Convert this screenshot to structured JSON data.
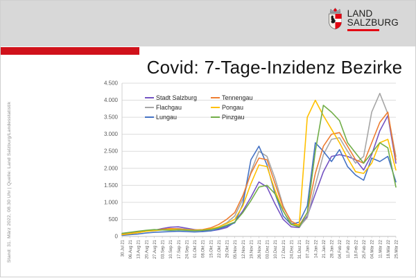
{
  "header": {
    "logo": {
      "line1": "LAND",
      "line2": "SALZBURG"
    }
  },
  "sidebar": {
    "note": "Stand: 31. März 2022, 08.30 Uhr | Quelle: Land Salzburg/Landesstatistik"
  },
  "title": "Covid: 7-Tage-Inzidenz Bezirke",
  "colors": {
    "header_gray": "#d8d8d8",
    "accent_red": "#d0121b",
    "logo_red": "#e30613",
    "grid": "#dcdcdc",
    "axis_text": "#595959"
  },
  "chart_data": {
    "type": "line",
    "title": "Covid: 7-Tage-Inzidenz Bezirke",
    "ylabel": "",
    "xlabel": "",
    "ylim": [
      0,
      4500
    ],
    "y_ticks": [
      "4.500",
      "4.000",
      "3.500",
      "3.000",
      "2.500",
      "2.000",
      "1.500",
      "1.000",
      "500",
      "0"
    ],
    "grid": "horizontal",
    "legend_position": "top-inside-two-columns",
    "categories": [
      "30.Jul 21",
      "06.Aug 21",
      "13.Aug 21",
      "20.Aug 21",
      "27.Aug 21",
      "03.Sep 21",
      "10.Sep 21",
      "17.Sep 21",
      "24.Sep 21",
      "01.Okt 21",
      "08.Okt 21",
      "15.Okt 21",
      "22.Okt 21",
      "29.Okt 21",
      "05.Nov 21",
      "12.Nov 21",
      "19.Nov 21",
      "26.Nov 21",
      "03.Dez 21",
      "10.Dez 21",
      "17.Dez 21",
      "24.Dez 21",
      "31.Dez 21",
      "07.Jan 22",
      "14.Jan 22",
      "21.Jan 22",
      "28.Jan 22",
      "04.Feb 22",
      "11.Feb 22",
      "18.Feb 22",
      "25.Feb 22",
      "04.Mär 22",
      "11.Mär 22",
      "18.Mär 22",
      "25.Mär 22"
    ],
    "series": [
      {
        "name": "Stadt Salzburg",
        "color": "#7352c2",
        "values": [
          60,
          90,
          120,
          160,
          180,
          230,
          270,
          280,
          240,
          200,
          170,
          160,
          200,
          260,
          420,
          750,
          1150,
          1600,
          1450,
          950,
          500,
          280,
          260,
          600,
          1250,
          1900,
          2350,
          2400,
          2350,
          2250,
          1950,
          2400,
          3100,
          3550,
          2150
        ]
      },
      {
        "name": "Flachgau",
        "color": "#a6a6a6",
        "values": [
          50,
          80,
          110,
          150,
          170,
          200,
          220,
          230,
          210,
          190,
          180,
          200,
          280,
          400,
          600,
          1100,
          1900,
          2500,
          2350,
          1700,
          900,
          400,
          280,
          550,
          1500,
          2400,
          2850,
          2900,
          2500,
          2150,
          2350,
          3650,
          4200,
          3600,
          2350
        ]
      },
      {
        "name": "Lungau",
        "color": "#4472c4",
        "values": [
          30,
          50,
          70,
          100,
          120,
          130,
          140,
          150,
          140,
          130,
          140,
          160,
          220,
          300,
          400,
          950,
          2250,
          2650,
          2100,
          1250,
          600,
          350,
          420,
          900,
          2750,
          2500,
          2200,
          2550,
          2050,
          1800,
          1650,
          2300,
          2200,
          2350,
          1600
        ]
      },
      {
        "name": "Tennengau",
        "color": "#ed7d31",
        "values": [
          60,
          90,
          130,
          170,
          190,
          210,
          230,
          220,
          200,
          190,
          200,
          250,
          350,
          500,
          700,
          1200,
          1850,
          2300,
          2250,
          1550,
          850,
          450,
          320,
          700,
          1850,
          2650,
          3000,
          3050,
          2650,
          2250,
          2150,
          2750,
          3350,
          3650,
          2250
        ]
      },
      {
        "name": "Pongau",
        "color": "#ffc000",
        "values": [
          50,
          80,
          110,
          150,
          170,
          190,
          210,
          200,
          190,
          180,
          190,
          220,
          280,
          380,
          500,
          900,
          1550,
          2100,
          2050,
          1350,
          750,
          350,
          350,
          3500,
          4000,
          3550,
          3150,
          2750,
          2300,
          1900,
          1850,
          2150,
          2750,
          2850,
          1950
        ]
      },
      {
        "name": "Pinzgau",
        "color": "#70ad47",
        "values": [
          90,
          120,
          150,
          180,
          200,
          190,
          180,
          190,
          180,
          170,
          180,
          200,
          250,
          330,
          420,
          700,
          1050,
          1450,
          1500,
          1250,
          750,
          350,
          280,
          700,
          2500,
          3850,
          3650,
          3400,
          2750,
          2450,
          2150,
          2450,
          2750,
          2600,
          1450
        ]
      }
    ]
  }
}
